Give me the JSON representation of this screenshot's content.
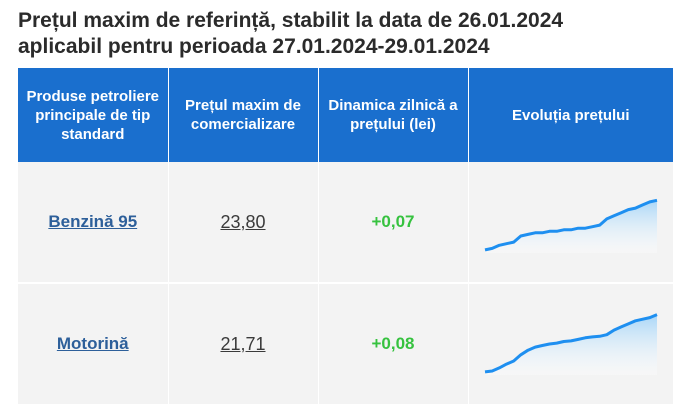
{
  "header": {
    "title_line1": "Prețul maxim de referință, stabilit la data de 26.01.2024",
    "title_line2": "aplicabil pentru perioada 27.01.2024-29.01.2024"
  },
  "table": {
    "headers": [
      "Produse petroliere principale de tip standard",
      "Prețul maxim de comercializare",
      "Dinamica zilnică a prețului (lei)",
      "Evoluția prețului"
    ],
    "rows": [
      {
        "product": "Benzină 95",
        "price": "23,80",
        "change": "+0,07",
        "trend": [
          1.0,
          1.5,
          2.5,
          3.0,
          3.5,
          5.5,
          6.0,
          6.5,
          6.5,
          7.0,
          7.0,
          7.5,
          7.5,
          8.0,
          8.0,
          8.5,
          9.0,
          11.0,
          12.0,
          13.0,
          14.0,
          14.5,
          15.5,
          16.5,
          17.0
        ]
      },
      {
        "product": "Motorină",
        "price": "21,71",
        "change": "+0,08",
        "trend": [
          1.0,
          1.3,
          2.3,
          3.5,
          4.5,
          6.5,
          8.0,
          9.0,
          9.5,
          10.0,
          10.3,
          10.8,
          11.0,
          11.5,
          12.0,
          12.3,
          12.5,
          13.0,
          14.5,
          15.5,
          16.5,
          17.5,
          18.0,
          18.5,
          19.5
        ]
      }
    ]
  },
  "colors": {
    "header_bg": "#1a6fce",
    "row_bg": "#f3f3f3",
    "positive": "#36c23f",
    "spark_line": "#1e8ff0",
    "spark_fill": "#a9d6f7"
  }
}
